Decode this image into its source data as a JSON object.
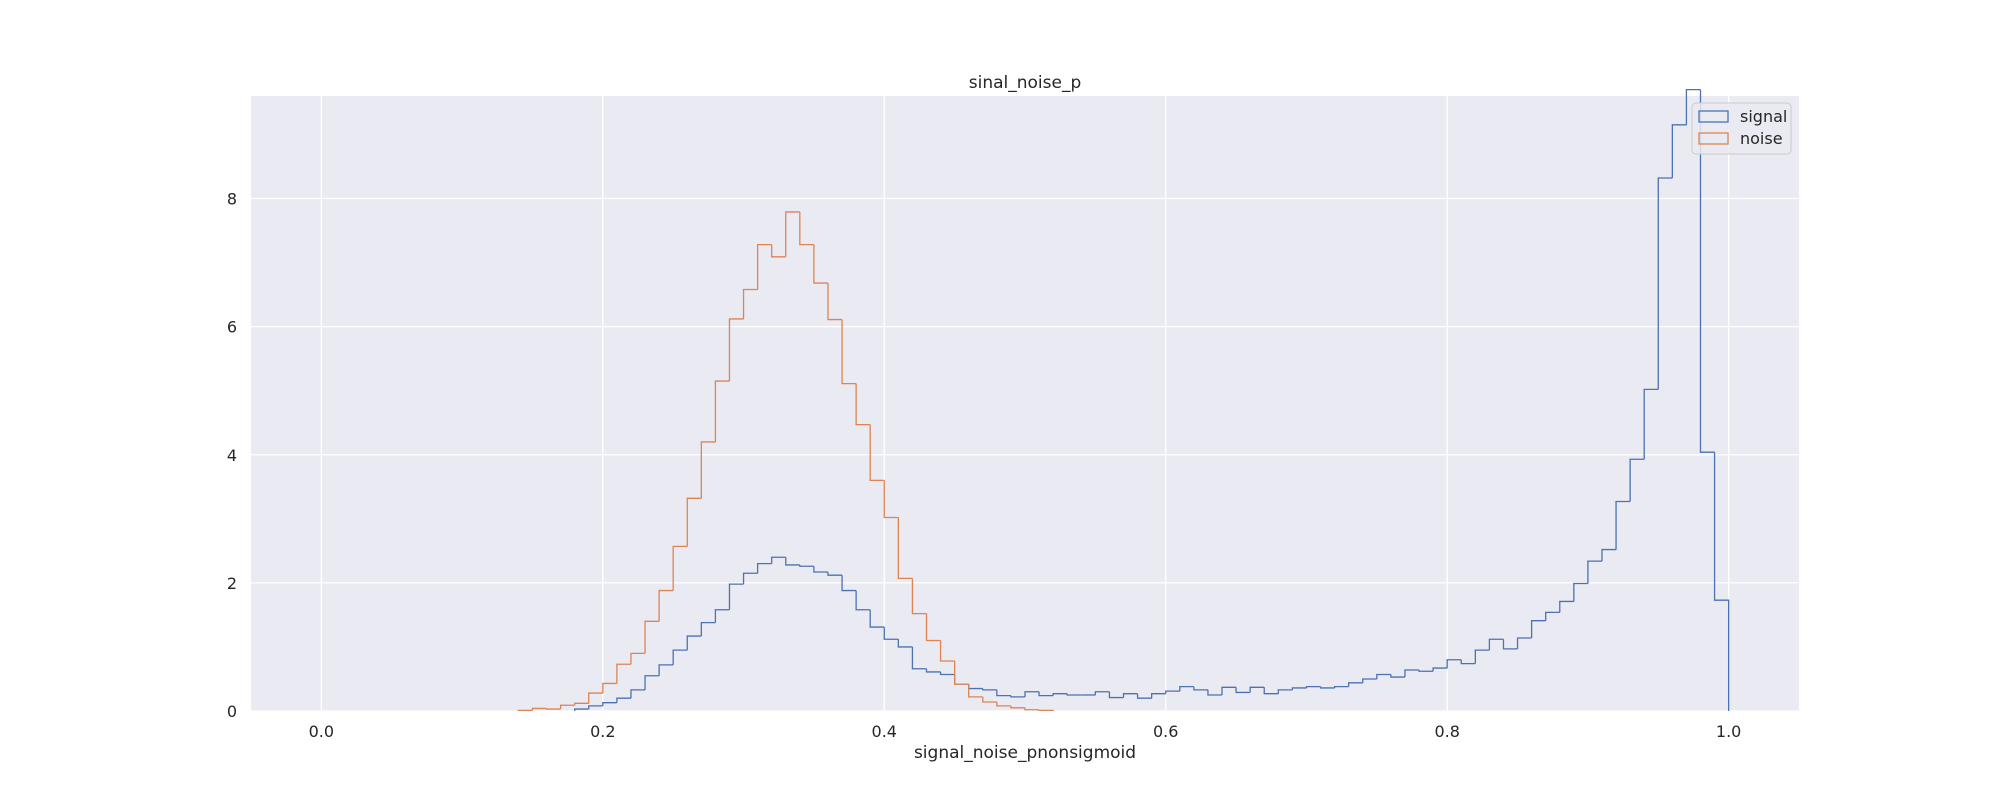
{
  "chart_data": {
    "type": "histogram-step",
    "title": "sinal_noise_p",
    "xlabel": "signal_noise_pnonsigmoid",
    "ylabel": "",
    "xlim": [
      -0.05,
      1.05
    ],
    "ylim": [
      0,
      9.6
    ],
    "x_ticks": [
      0.0,
      0.2,
      0.4,
      0.6,
      0.8,
      1.0
    ],
    "x_tick_labels": [
      "0.0",
      "0.2",
      "0.4",
      "0.6",
      "0.8",
      "1.0"
    ],
    "y_ticks": [
      0,
      2,
      4,
      6,
      8
    ],
    "y_tick_labels": [
      "0",
      "2",
      "4",
      "6",
      "8"
    ],
    "grid": true,
    "background": "#eaeaf2",
    "legend_position": "top-right",
    "series": [
      {
        "name": "signal",
        "color": "#4c72b0",
        "bin_start": 0.18,
        "bin_width": 0.01,
        "values": [
          0.03,
          0.08,
          0.13,
          0.2,
          0.33,
          0.55,
          0.72,
          0.95,
          1.17,
          1.38,
          1.58,
          1.98,
          2.15,
          2.3,
          2.4,
          2.28,
          2.26,
          2.17,
          2.12,
          1.88,
          1.58,
          1.31,
          1.12,
          1.0,
          0.66,
          0.61,
          0.57,
          0.42,
          0.35,
          0.33,
          0.24,
          0.22,
          0.3,
          0.24,
          0.27,
          0.25,
          0.25,
          0.3,
          0.21,
          0.27,
          0.2,
          0.27,
          0.31,
          0.38,
          0.33,
          0.25,
          0.37,
          0.29,
          0.37,
          0.27,
          0.33,
          0.36,
          0.38,
          0.36,
          0.38,
          0.44,
          0.5,
          0.57,
          0.53,
          0.64,
          0.62,
          0.67,
          0.8,
          0.74,
          0.95,
          1.12,
          0.97,
          1.14,
          1.41,
          1.54,
          1.71,
          1.99,
          2.34,
          2.52,
          3.27,
          3.93,
          5.02,
          8.32,
          9.15,
          9.7,
          4.04,
          1.73
        ]
      },
      {
        "name": "noise",
        "color": "#dd8452",
        "bin_start": 0.14,
        "bin_width": 0.01,
        "values": [
          0.01,
          0.04,
          0.03,
          0.09,
          0.12,
          0.28,
          0.43,
          0.73,
          0.9,
          1.4,
          1.88,
          2.57,
          3.32,
          4.2,
          5.15,
          6.12,
          6.58,
          7.28,
          7.09,
          7.79,
          7.28,
          6.68,
          6.11,
          5.11,
          4.47,
          3.6,
          3.02,
          2.07,
          1.52,
          1.1,
          0.78,
          0.42,
          0.22,
          0.14,
          0.08,
          0.05,
          0.02,
          0.01
        ]
      }
    ]
  }
}
